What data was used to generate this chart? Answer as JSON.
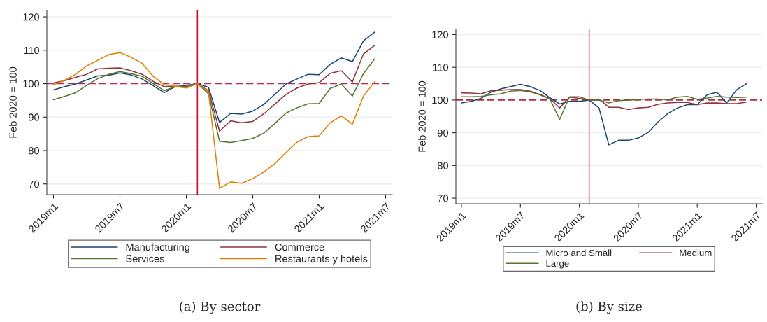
{
  "chart_data": [
    {
      "type": "line",
      "title": "(a) By sector",
      "ylabel": "Feb 2020 = 100",
      "legend": "bottom",
      "grid": "y",
      "marker": "none",
      "line_style": "solid",
      "x": [
        "2019-01",
        "2019-02",
        "2019-03",
        "2019-04",
        "2019-05",
        "2019-06",
        "2019-07",
        "2019-08",
        "2019-09",
        "2019-10",
        "2019-11",
        "2019-12",
        "2020-01",
        "2020-02",
        "2020-03",
        "2020-04",
        "2020-05",
        "2020-06",
        "2020-07",
        "2020-08",
        "2020-09",
        "2020-10",
        "2020-11",
        "2020-12",
        "2021-01",
        "2021-02",
        "2021-03",
        "2021-04",
        "2021-05",
        "2021-06"
      ],
      "xlim": [
        "2018-12-13",
        "2021-07-19"
      ],
      "ylim": [
        66.8,
        121.9
      ],
      "xticks": [
        {
          "value": "2019-01",
          "label": "2019m1"
        },
        {
          "value": "2019-07",
          "label": "2019m7"
        },
        {
          "value": "2020-01",
          "label": "2020m1"
        },
        {
          "value": "2020-07",
          "label": "2020m7"
        },
        {
          "value": "2021-01",
          "label": "2021m1"
        },
        {
          "value": "2021-07",
          "label": "2021m7"
        }
      ],
      "yticks": [
        70,
        80,
        90,
        100,
        110,
        120
      ],
      "ref_lines": [
        {
          "axis": "y",
          "value": 100,
          "color": "#b0305a",
          "line_style": "dashed"
        },
        {
          "axis": "x",
          "value": "2020-02",
          "color": "#c8102e",
          "line_style": "solid"
        }
      ],
      "series": [
        {
          "name": "Manufacturing",
          "color": "#1a476f",
          "values": [
            98.1,
            99.1,
            99.9,
            101.1,
            102.3,
            102.5,
            103.2,
            102.6,
            101.4,
            99.4,
            97.3,
            99.1,
            99.5,
            100,
            98.9,
            88.4,
            91.1,
            90.9,
            91.8,
            93.8,
            96.8,
            99.9,
            101.4,
            102.8,
            102.7,
            105.8,
            107.7,
            106.6,
            112.8,
            115.4
          ]
        },
        {
          "name": "Commerce",
          "color": "#90353b",
          "values": [
            100.2,
            100.9,
            101.9,
            102.8,
            104.4,
            104.6,
            104.7,
            103.9,
            102.8,
            100.7,
            99.1,
            99.2,
            99.1,
            100,
            97.9,
            85.8,
            88.9,
            88.3,
            88.7,
            91,
            93.9,
            96.8,
            98.7,
            99.9,
            100.3,
            103.1,
            103.9,
            100.5,
            108.9,
            111.4
          ]
        },
        {
          "name": "Services",
          "color": "#55752f",
          "values": [
            95.2,
            96.2,
            97.3,
            99.5,
            101.5,
            102.8,
            103.6,
            103,
            102.2,
            100.1,
            97.9,
            99.1,
            99.1,
            100,
            97,
            82.8,
            82.4,
            83,
            83.6,
            85.2,
            88.1,
            91.2,
            92.8,
            94,
            94.1,
            98.6,
            99.9,
            96.3,
            103,
            107.4
          ]
        },
        {
          "name": "Restaurants y hotels",
          "color": "#e37e00",
          "values": [
            99.7,
            101,
            102.8,
            105.3,
            107,
            108.7,
            109.3,
            107.9,
            106.1,
            102.2,
            99.7,
            99.2,
            98.7,
            100,
            97.5,
            68.7,
            70.6,
            70.2,
            71.6,
            73.6,
            76.1,
            79.4,
            82.5,
            84.2,
            84.4,
            88.3,
            90.4,
            87.9,
            96.3,
            100.5
          ]
        }
      ]
    },
    {
      "type": "line",
      "title": "(b) By size",
      "ylabel": "Feb 2020 = 100",
      "legend": "bottom",
      "grid": "y",
      "marker": "none",
      "line_style": "solid",
      "x": [
        "2019-01",
        "2019-02",
        "2019-03",
        "2019-04",
        "2019-05",
        "2019-06",
        "2019-07",
        "2019-08",
        "2019-09",
        "2019-10",
        "2019-11",
        "2019-12",
        "2020-01",
        "2020-02",
        "2020-03",
        "2020-04",
        "2020-05",
        "2020-06",
        "2020-07",
        "2020-08",
        "2020-09",
        "2020-10",
        "2020-11",
        "2020-12",
        "2021-01",
        "2021-02",
        "2021-03",
        "2021-04",
        "2021-05",
        "2021-06"
      ],
      "xlim": [
        "2018-12-14",
        "2021-07-19"
      ],
      "ylim": [
        68.3,
        121.6
      ],
      "xticks": [
        {
          "value": "2019-01",
          "label": "2019m1"
        },
        {
          "value": "2019-07",
          "label": "2019m7"
        },
        {
          "value": "2020-01",
          "label": "2020m1"
        },
        {
          "value": "2020-07",
          "label": "2020m7"
        },
        {
          "value": "2021-01",
          "label": "2021m1"
        },
        {
          "value": "2021-07",
          "label": "2021m7"
        }
      ],
      "yticks": [
        70,
        80,
        90,
        100,
        110,
        120
      ],
      "ref_lines": [
        {
          "axis": "y",
          "value": 100,
          "color": "#b0304a",
          "line_style": "dashed"
        },
        {
          "axis": "x",
          "value": "2020-02",
          "color": "#d9607a",
          "line_style": "solid"
        }
      ],
      "series": [
        {
          "name": "Micro and Small",
          "color": "#1a476f",
          "values": [
            99.1,
            99.6,
            100.5,
            102.4,
            103.4,
            104.1,
            104.8,
            104.1,
            102.9,
            100.7,
            98.8,
            99.6,
            99.6,
            100,
            97.6,
            86.3,
            87.7,
            87.7,
            88.4,
            90.1,
            93.3,
            95.9,
            97.6,
            98.6,
            98.6,
            101.6,
            102.4,
            99.1,
            103.1,
            105
          ]
        },
        {
          "name": "Medium",
          "color": "#90353b",
          "values": [
            102.2,
            102.1,
            101.9,
            102.8,
            103,
            103.2,
            103.2,
            102.7,
            101.7,
            100.4,
            97.6,
            100.9,
            100.5,
            100,
            100.3,
            97.8,
            97.8,
            97.1,
            97.6,
            97.8,
            98.7,
            99.1,
            99.3,
            99.3,
            98.6,
            99.1,
            99.1,
            98.9,
            98.9,
            99.4
          ]
        },
        {
          "name": "Large",
          "color": "#55752f",
          "values": [
            101,
            101,
            101.1,
            101.6,
            101.9,
            102.7,
            102.9,
            102.5,
            101.6,
            100.3,
            94.1,
            101,
            101,
            100,
            100,
            99.1,
            99.8,
            100,
            100.2,
            100.3,
            100.3,
            100.1,
            100.9,
            101.1,
            100.2,
            100.6,
            101.1,
            100.9,
            100.8,
            100.9
          ]
        }
      ]
    }
  ]
}
